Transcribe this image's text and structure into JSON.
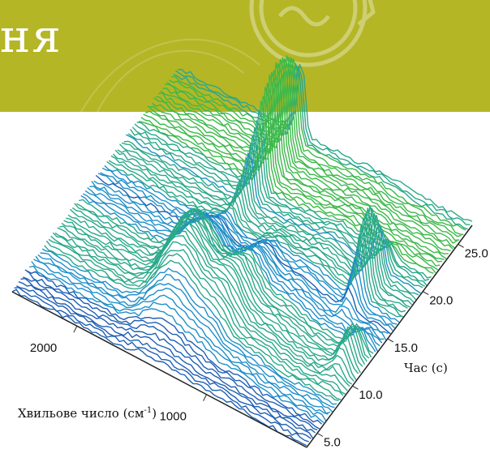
{
  "banner": {
    "text": "ня",
    "color": "#b4b626"
  },
  "chart_data": {
    "type": "waterfall-3d",
    "title": "",
    "xlabel": "Хвильове число (см",
    "xlabel_sup": "-1",
    "xlabel_end": ")",
    "ylabel": "Час (с)",
    "x_ticks": [
      2000,
      1000
    ],
    "y_ticks": [
      "5.0",
      "10.0",
      "15.0",
      "20.0",
      "25.0"
    ],
    "ylim": [
      3.5,
      27
    ],
    "colors": [
      "#1f5fb4",
      "#1f8fc8",
      "#2aa88a",
      "#3cb84a",
      "#b8c820",
      "#e89030",
      "#d85a5a"
    ]
  }
}
